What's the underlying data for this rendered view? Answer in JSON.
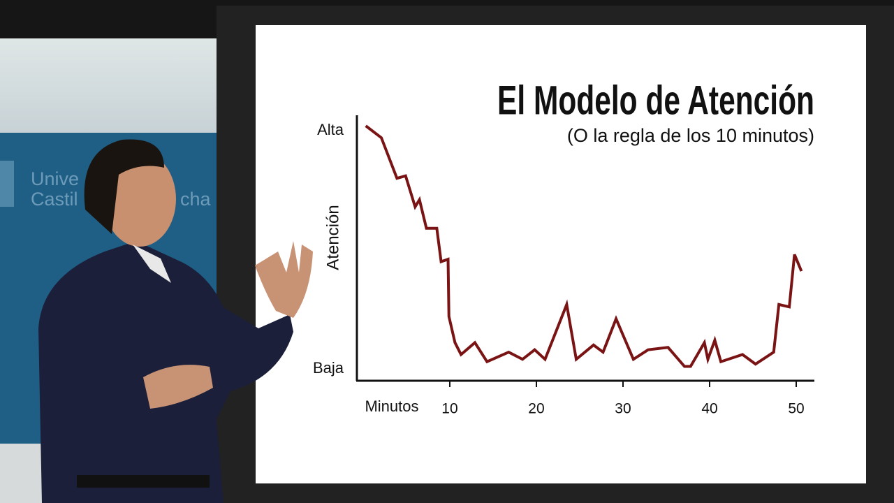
{
  "chart_data": {
    "type": "line",
    "title": "El Modelo de Atención",
    "subtitle": "(O la regla de los 10 minutos)",
    "y_label": "Atención",
    "x_label": "Minutos",
    "x": [
      0.3,
      2.1,
      3.9,
      4.9,
      6.0,
      6.5,
      7.3,
      8.5,
      9.0,
      9.8,
      9.9,
      10.6,
      11.3,
      12.9,
      14.3,
      16.8,
      18.4,
      19.8,
      21.0,
      23.5,
      24.6,
      26.6,
      27.7,
      29.2,
      31.2,
      32.9,
      35.2,
      37.1,
      37.8,
      39.4,
      39.8,
      40.6,
      41.3,
      43.8,
      45.3,
      47.4,
      48.0,
      49.2,
      49.8,
      50.6
    ],
    "series": [
      {
        "color": "#7a1414",
        "values": [
          102,
          97,
          80,
          81,
          68,
          71,
          59,
          59,
          45,
          46,
          22,
          11,
          6,
          11,
          3,
          7,
          4,
          8,
          4,
          27,
          4,
          10,
          7,
          21,
          4,
          8,
          9,
          1,
          1,
          11,
          4,
          12,
          3,
          6,
          2,
          7,
          27,
          26,
          48,
          41
        ]
      }
    ],
    "xlim": [
      -0.7,
      52
    ],
    "xticks": [
      10,
      20,
      30,
      40,
      50
    ],
    "ylim": [
      -5,
      106
    ],
    "yticks": [
      {
        "value": 0,
        "label": "Baja"
      },
      {
        "value": 100,
        "label": "Alta"
      }
    ]
  },
  "background_text": [
    "Unive",
    "Castil",
    "cha"
  ]
}
